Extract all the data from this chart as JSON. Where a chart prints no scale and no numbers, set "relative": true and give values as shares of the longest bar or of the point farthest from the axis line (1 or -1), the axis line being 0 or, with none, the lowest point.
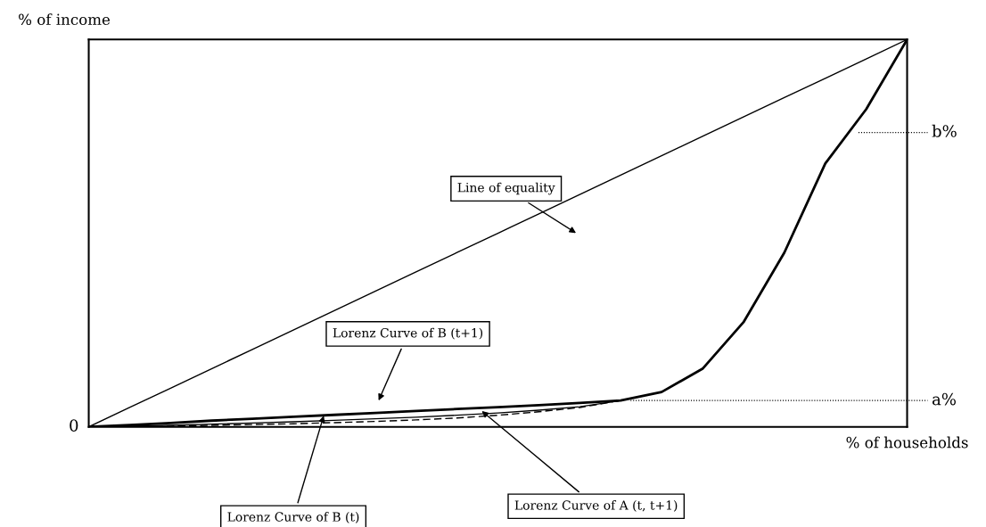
{
  "chart_data": {
    "type": "line",
    "relative": true,
    "xlabel": "% of households",
    "ylabel": "% of income",
    "categories": [
      null,
      null,
      null,
      null,
      null,
      null,
      null,
      null,
      null,
      null,
      null,
      null,
      null,
      null,
      null,
      null,
      null,
      null,
      null,
      null,
      null
    ],
    "series": [
      {
        "color": "#000000",
        "values": [
          0,
          0.05,
          0.1,
          0.15,
          0.2,
          0.25,
          0.3,
          0.35,
          0.4,
          0.45,
          0.5,
          0.55,
          0.6,
          0.65,
          0.7,
          0.75,
          0.8,
          0.85,
          0.9,
          0.95,
          1
        ]
      },
      {
        "color": "#000000",
        "values": [
          0,
          0.005,
          0.01,
          0.016,
          0.021,
          0.026,
          0.031,
          0.036,
          0.041,
          0.046,
          0.051,
          0.056,
          0.062,
          0.068,
          0.09,
          0.15,
          0.27,
          0.45,
          0.68,
          0.82,
          1
        ]
      },
      {
        "color": "#000000",
        "values": [
          0,
          0.002,
          0.004,
          0.007,
          0.01,
          0.013,
          0.017,
          0.021,
          0.025,
          0.03,
          0.036,
          0.043,
          0.052,
          0.068,
          null,
          null,
          null,
          null,
          null,
          null,
          null
        ]
      },
      {
        "color": "#000000",
        "line_style": "dashed",
        "values": [
          0,
          0.001,
          0.002,
          0.004,
          0.006,
          0.008,
          0.011,
          0.014,
          0.018,
          0.023,
          0.03,
          0.039,
          0.05,
          0.068,
          null,
          null,
          null,
          null,
          null,
          null,
          null
        ]
      }
    ],
    "ref_lines": [
      {
        "axis": "y",
        "value": 0.068,
        "label": "a%",
        "line_style": "dotted"
      },
      {
        "axis": "y",
        "value": 0.76,
        "label": "b%",
        "line_style": "dotted"
      }
    ],
    "annotations": [
      "0",
      "Line of equality",
      "Lorenz Curve of B (t+1)",
      "Lorenz Curve of B (t)",
      "Lorenz Curve of A (t, t+1)"
    ]
  }
}
